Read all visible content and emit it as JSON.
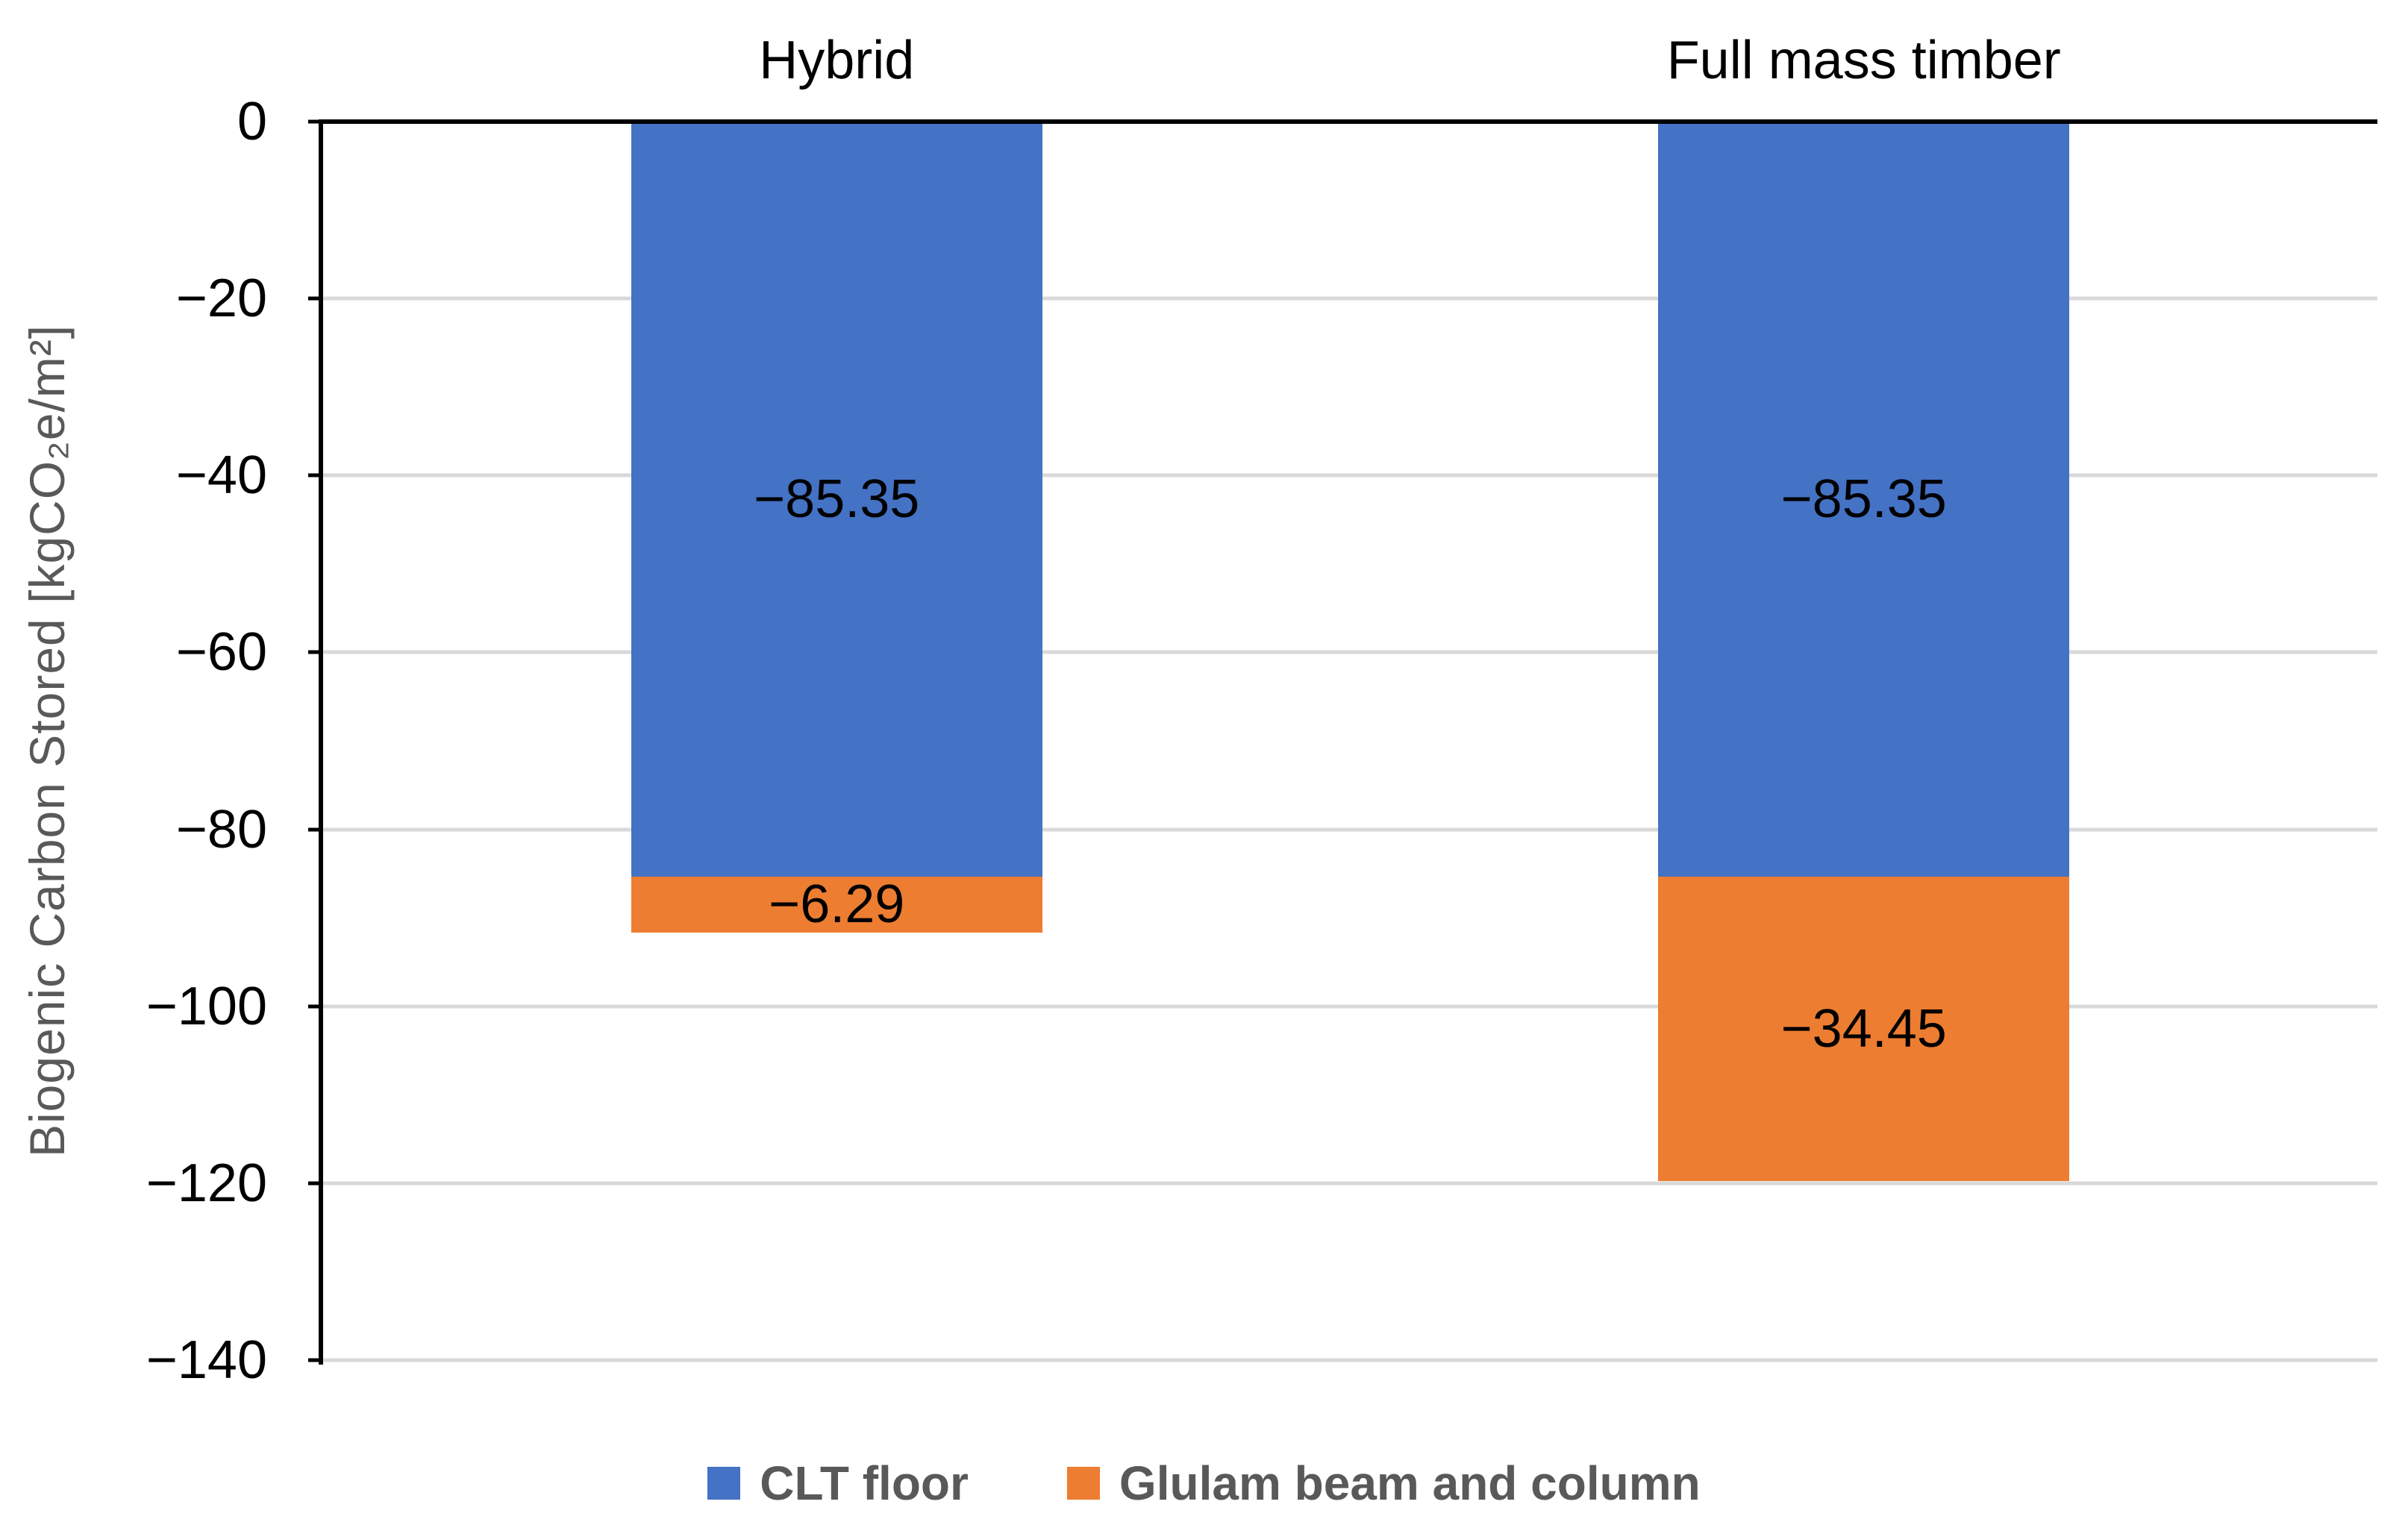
{
  "chart_data": {
    "type": "bar",
    "stacked": true,
    "categories": [
      "Hybrid",
      "Full mass timber"
    ],
    "series": [
      {
        "name": "CLT floor",
        "color": "#4472C4",
        "values": [
          -85.35,
          -85.35
        ],
        "labels": [
          "−85.35",
          "−85.35"
        ]
      },
      {
        "name": "Glulam beam and column",
        "color": "#ED7D31",
        "values": [
          -6.29,
          -34.45
        ],
        "labels": [
          "−6.29",
          "−34.45"
        ]
      }
    ],
    "ylabel": "Biogenic Carbon Stored [kgCO₂e/m²]",
    "ylim": [
      -140,
      0
    ],
    "ytick_interval": 20,
    "yticks": [
      "0",
      "−20",
      "−40",
      "−60",
      "−80",
      "−100",
      "−120",
      "−140"
    ],
    "grid": true,
    "legend_position": "bottom",
    "colors": {
      "grid": "#D9D9D9",
      "axis": "#000000",
      "muted_text": "#595959"
    }
  }
}
